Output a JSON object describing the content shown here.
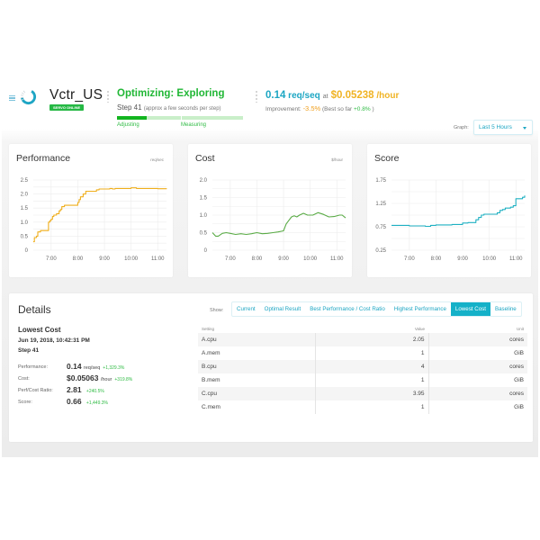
{
  "header": {
    "app_name": "Vctr_US",
    "status_badge": "SERVO ONLINE",
    "optimizer_status": "Optimizing: Exploring",
    "step_label": "Step 41",
    "step_note": "(approx a few seconds per step)",
    "progress": {
      "phases": [
        "Adjusting",
        "Measuring"
      ],
      "adjusting_fill_pct": 46
    },
    "current_perf_value": "0.14",
    "current_perf_unit": "req/seq",
    "at_label": "at",
    "current_cost_value": "$0.05238",
    "current_cost_unit": "/hour",
    "improvement_label": "Improvement:",
    "improvement_value": "-3.5%",
    "best_so_far_label": "(Best so far",
    "best_so_far_value": "+0.8%",
    "best_so_far_close": ")",
    "graph_label": "Graph:",
    "graph_range": "Last 5 Hours"
  },
  "colors": {
    "performance": "#efae1b",
    "cost": "#5aab46",
    "score": "#1eb0c2",
    "accent": "#1ca6c3",
    "online_green": "#25b844"
  },
  "chart_data": [
    {
      "type": "line",
      "title": "Performance",
      "unit": "req/sec",
      "x_ticks": [
        "7:00",
        "8:00",
        "9:00",
        "10:00",
        "11:00"
      ],
      "y_ticks": [
        0,
        0.5,
        1.0,
        1.5,
        2.0,
        2.5
      ],
      "ylim": [
        0,
        2.5
      ],
      "xlim": [
        6.33,
        11.33
      ],
      "x": [
        6.33,
        6.37,
        6.4,
        6.45,
        6.5,
        6.55,
        6.6,
        6.7,
        6.8,
        6.9,
        6.95,
        7.0,
        7.05,
        7.1,
        7.2,
        7.3,
        7.35,
        7.4,
        7.5,
        7.6,
        7.7,
        7.8,
        7.9,
        8.0,
        8.05,
        8.1,
        8.2,
        8.3,
        8.4,
        8.5,
        8.6,
        8.7,
        8.8,
        9.0,
        9.2,
        9.3,
        9.4,
        9.6,
        9.8,
        10.0,
        10.2,
        10.5,
        11.0,
        11.33
      ],
      "values": [
        0.3,
        0.45,
        0.45,
        0.5,
        0.65,
        0.65,
        0.7,
        0.7,
        0.7,
        1.0,
        1.05,
        1.1,
        1.2,
        1.25,
        1.3,
        1.4,
        1.45,
        1.55,
        1.6,
        1.6,
        1.6,
        1.6,
        1.6,
        1.7,
        1.8,
        1.9,
        2.0,
        2.1,
        2.1,
        2.1,
        2.1,
        2.15,
        2.18,
        2.18,
        2.2,
        2.18,
        2.2,
        2.2,
        2.2,
        2.22,
        2.2,
        2.2,
        2.19,
        2.2
      ]
    },
    {
      "type": "line",
      "title": "Cost",
      "unit": "$/hour",
      "x_ticks": [
        "7:00",
        "8:00",
        "9:00",
        "10:00",
        "11:00"
      ],
      "y_ticks": [
        0,
        0.5,
        1.0,
        1.5,
        2.0
      ],
      "ylim": [
        0,
        2.0
      ],
      "xlim": [
        6.33,
        11.33
      ],
      "x": [
        6.33,
        6.45,
        6.55,
        6.7,
        6.85,
        7.0,
        7.2,
        7.4,
        7.6,
        7.8,
        8.0,
        8.2,
        8.4,
        8.6,
        8.8,
        9.0,
        9.1,
        9.2,
        9.3,
        9.4,
        9.5,
        9.6,
        9.75,
        9.9,
        10.1,
        10.3,
        10.5,
        10.7,
        10.9,
        11.1,
        11.2,
        11.33
      ],
      "values": [
        0.5,
        0.4,
        0.4,
        0.48,
        0.5,
        0.48,
        0.45,
        0.47,
        0.45,
        0.47,
        0.5,
        0.47,
        0.48,
        0.5,
        0.52,
        0.55,
        0.75,
        0.85,
        0.95,
        0.98,
        0.95,
        1.0,
        1.05,
        1.0,
        1.0,
        1.07,
        1.02,
        0.95,
        0.96,
        1.0,
        1.0,
        0.92
      ]
    },
    {
      "type": "line",
      "title": "Score",
      "unit": "",
      "x_ticks": [
        "7:00",
        "8:00",
        "9:00",
        "10:00",
        "11:00"
      ],
      "y_ticks": [
        0.25,
        0.75,
        1.25,
        1.75
      ],
      "ylim": [
        0.25,
        1.75
      ],
      "xlim": [
        6.33,
        11.33
      ],
      "x": [
        6.33,
        6.6,
        7.0,
        7.4,
        7.6,
        7.8,
        8.0,
        8.3,
        8.6,
        8.9,
        9.0,
        9.2,
        9.4,
        9.5,
        9.6,
        9.7,
        9.8,
        10.0,
        10.2,
        10.3,
        10.4,
        10.5,
        10.6,
        10.7,
        10.8,
        10.9,
        11.0,
        11.2,
        11.25,
        11.33
      ],
      "values": [
        0.78,
        0.78,
        0.77,
        0.77,
        0.76,
        0.78,
        0.79,
        0.79,
        0.8,
        0.8,
        0.83,
        0.84,
        0.84,
        0.9,
        0.95,
        1.0,
        1.02,
        1.02,
        1.02,
        1.05,
        1.1,
        1.12,
        1.15,
        1.15,
        1.17,
        1.2,
        1.35,
        1.35,
        1.38,
        1.42
      ]
    }
  ],
  "details": {
    "title": "Details",
    "selection_title": "Lowest Cost",
    "timestamp": "Jun 19, 2018, 10:42:31 PM",
    "step": "Step 41",
    "stats": [
      {
        "label": "Performance:",
        "value": "0.14",
        "unit": "req/seq",
        "delta": "+1,329.3%"
      },
      {
        "label": "Cost:",
        "value": "$0.05063",
        "unit": "/hour",
        "delta": "+319.8%"
      },
      {
        "label": "Perf/Cost Ratio:",
        "value": "2.81",
        "unit": "",
        "delta": "+240.5%"
      },
      {
        "label": "Score:",
        "value": "0.66",
        "unit": "",
        "delta": "+1,449.3%"
      }
    ],
    "show_label": "Show:",
    "show_tabs": [
      {
        "label": "Current",
        "active": false
      },
      {
        "label": "Optimal Result",
        "active": false
      },
      {
        "label": "Best Performance / Cost Ratio",
        "active": false
      },
      {
        "label": "Highest Performance",
        "active": false
      },
      {
        "label": "Lowest Cost",
        "active": true
      },
      {
        "label": "Baseline",
        "active": false
      }
    ],
    "table": {
      "headers": [
        "Setting",
        "Value",
        "Unit"
      ],
      "rows": [
        [
          "A.cpu",
          "2.05",
          "cores"
        ],
        [
          "A.mem",
          "1",
          "GiB"
        ],
        [
          "B.cpu",
          "4",
          "cores"
        ],
        [
          "B.mem",
          "1",
          "GiB"
        ],
        [
          "C.cpu",
          "3.95",
          "cores"
        ],
        [
          "C.mem",
          "1",
          "GiB"
        ]
      ]
    }
  }
}
